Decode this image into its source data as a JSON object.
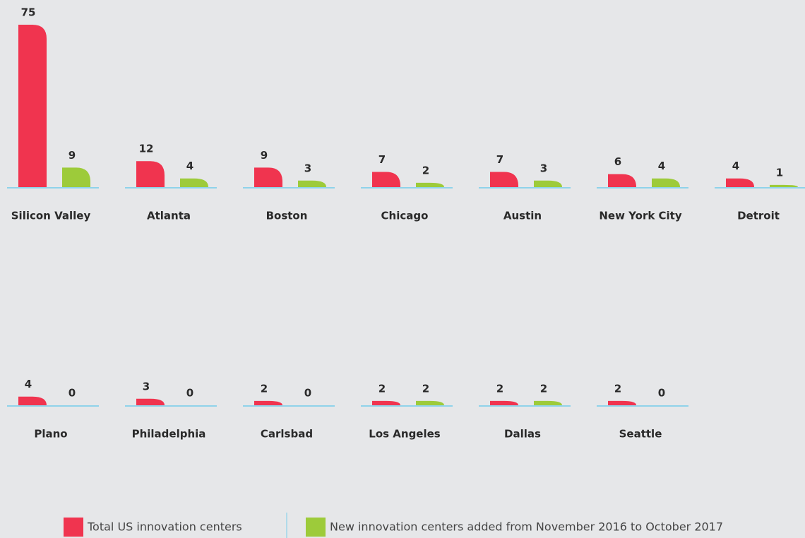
{
  "chart_data": {
    "type": "bar",
    "categories": [
      "Silicon Valley",
      "Atlanta",
      "Boston",
      "Chicago",
      "Austin",
      "New York City",
      "Detroit",
      "Plano",
      "Philadelphia",
      "Carlsbad",
      "Los Angeles",
      "Dallas",
      "Seattle"
    ],
    "series": [
      {
        "name": "Total US innovation centers",
        "color": "#f0344f",
        "values": [
          75,
          12,
          9,
          7,
          7,
          6,
          4,
          4,
          3,
          2,
          2,
          2,
          2
        ]
      },
      {
        "name": "New innovation centers added from November 2016 to October 2017",
        "color": "#9dcb3a",
        "values": [
          9,
          4,
          3,
          2,
          3,
          4,
          1,
          0,
          0,
          0,
          2,
          2,
          0
        ]
      }
    ]
  }
}
